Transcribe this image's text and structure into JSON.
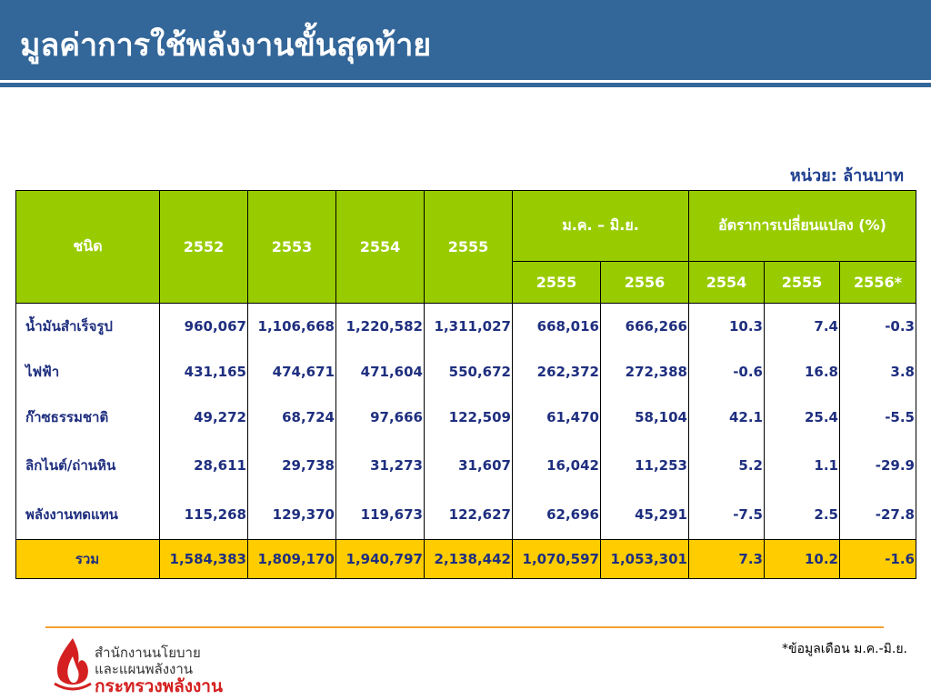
{
  "header": {
    "title": "มูลค่าการใช้พลังงานขั้นสุดท้าย"
  },
  "unit": "หน่วย: ล้านบาท",
  "table": {
    "columns": [
      "ชนิด",
      "2552",
      "2553",
      "2554",
      "2555"
    ],
    "groups": [
      {
        "label": "ม.ค. – มิ.ย.",
        "sub": [
          "2555",
          "2556"
        ]
      },
      {
        "label": "อัตราการเปลี่ยนแปลง (%)",
        "sub": [
          "2554",
          "2555",
          "2556*"
        ]
      }
    ],
    "rows": [
      [
        "น้ำมันสำเร็จรูป",
        "960,067",
        "1,106,668",
        "1,220,582",
        "1,311,027",
        "668,016",
        "666,266",
        "10.3",
        "7.4",
        "-0.3"
      ],
      [
        "ไฟฟ้า",
        "431,165",
        "474,671",
        "471,604",
        "550,672",
        "262,372",
        "272,388",
        "-0.6",
        "16.8",
        "3.8"
      ],
      [
        "ก๊าซธรรมชาติ",
        "49,272",
        "68,724",
        "97,666",
        "122,509",
        "61,470",
        "58,104",
        "42.1",
        "25.4",
        "-5.5"
      ],
      [
        "ลิกไนต์/ถ่านหิน",
        "28,611",
        "29,738",
        "31,273",
        "31,607",
        "16,042",
        "11,253",
        "5.2",
        "1.1",
        "-29.9"
      ],
      [
        "พลังงานทดแทน",
        "115,268",
        "129,370",
        "119,673",
        "122,627",
        "62,696",
        "45,291",
        "-7.5",
        "2.5",
        "-27.8"
      ]
    ],
    "total": [
      "รวม",
      "1,584,383",
      "1,809,170",
      "1,940,797",
      "2,138,442",
      "1,070,597",
      "1,053,301",
      "7.3",
      "10.2",
      "-1.6"
    ]
  },
  "footnote": "*ข้อมูลเดือน ม.ค.-มิ.ย.",
  "logo": {
    "line1": "สำนักงานนโยบาย",
    "line2": "และแผนพลังงาน",
    "line3": "กระทรวงพลังงาน"
  }
}
